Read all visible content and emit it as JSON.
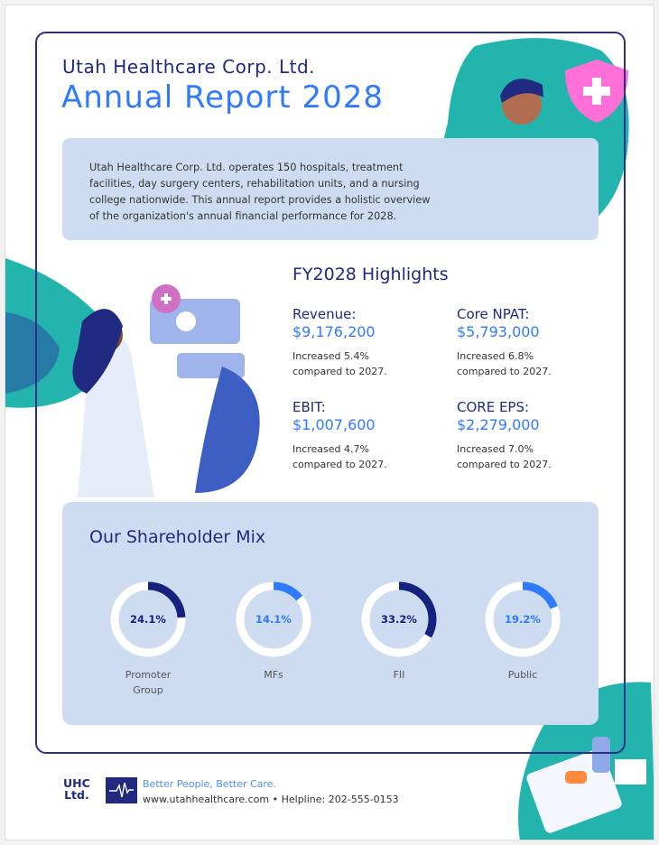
{
  "header": {
    "company": "Utah Healthcare Corp. Ltd.",
    "title": "Annual Report 2028"
  },
  "description": "Utah Healthcare Corp. Ltd. operates 150 hospitals, treatment facilities, day surgery centers, rehabilitation units, and a nursing college nationwide. This annual report provides a holistic overview of the organization's annual financial performance for 2028.",
  "highlights": {
    "title": "FY2028 Highlights",
    "items": [
      {
        "label": "Revenue:",
        "value": "$9,176,200",
        "note1": "Increased 5.4%",
        "note2": "compared to 2027."
      },
      {
        "label": "Core NPAT:",
        "value": "$5,793,000",
        "note1": "Increased 6.8%",
        "note2": "compared to 2027."
      },
      {
        "label": "EBIT:",
        "value": "$1,007,600",
        "note1": "Increased 4.7%",
        "note2": "compared to 2027."
      },
      {
        "label": "CORE EPS:",
        "value": "$2,279,000",
        "note1": "Increased 7.0%",
        "note2": "compared to 2027."
      }
    ]
  },
  "shareholder_mix": {
    "title": "Our Shareholder Mix",
    "items": [
      {
        "label1": "Promoter",
        "label2": "Group",
        "percent": 24.1,
        "display": "24.1%",
        "color": "#15237e"
      },
      {
        "label1": "MFs",
        "label2": "",
        "percent": 14.1,
        "display": "14.1%",
        "color": "#2f7bff"
      },
      {
        "label1": "FII",
        "label2": "",
        "percent": 33.2,
        "display": "33.2%",
        "color": "#15237e"
      },
      {
        "label1": "Public",
        "label2": "",
        "percent": 19.2,
        "display": "19.2%",
        "color": "#2f7bff"
      }
    ]
  },
  "footer": {
    "logo_line1": "UHC",
    "logo_line2": "Ltd.",
    "tagline": "Better People, Better Care.",
    "contact": "www.utahhealthcare.com • Helpline: 202-555-0153"
  },
  "colors": {
    "navy": "#1f2a80",
    "accent": "#2f7bff",
    "panel": "#cddcf0",
    "teal": "#1fb5b0"
  }
}
